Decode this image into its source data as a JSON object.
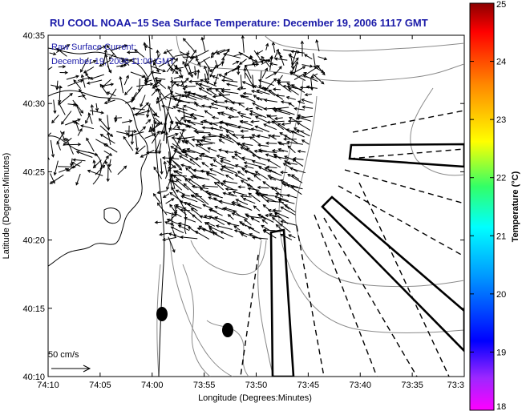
{
  "title": "RU COOL  NOAA−15  Sea Surface Temperature:  December 19, 2006 1117 GMT",
  "subtitle_lines": [
    "Raw Surface Current:",
    "December 19, 2006 11:00 GMT"
  ],
  "map": {
    "x_axis_label": "Longitude (Degrees:Minutes)",
    "y_axis_label": "Latitude (Degrees:Minutes)",
    "x_tick_labels": [
      "74:10",
      "74:05",
      "74:00",
      "73:55",
      "73:50",
      "73:45",
      "73:40",
      "73:35",
      "73:3"
    ],
    "y_tick_labels": [
      "40:35",
      "40:30",
      "40:25",
      "40:20",
      "40:15",
      "40:10"
    ],
    "x_range_minutes_west": [
      4450,
      4410
    ],
    "y_range_minutes_north": [
      2410,
      2435
    ]
  },
  "colorbar": {
    "label": "Temperature (°C)",
    "tick_labels": [
      "25",
      "24",
      "23",
      "22",
      "21",
      "20",
      "19",
      "18"
    ],
    "range": [
      18,
      25
    ],
    "colormap": "jet"
  },
  "scale_label": "50 cm/s",
  "colors": {
    "title": "#1a1aa8",
    "land_outline": "#000000",
    "bathymetry": "#8a8a8a",
    "vectors": "#000000",
    "frame": "#000000"
  },
  "features": {
    "markers": [
      "black-dot",
      "black-dot"
    ],
    "shipping_lanes": "two outlined lane polygons with dashed separation lines",
    "current_field": "dense black arrow vectors over the Lower Bay / Apex region"
  }
}
